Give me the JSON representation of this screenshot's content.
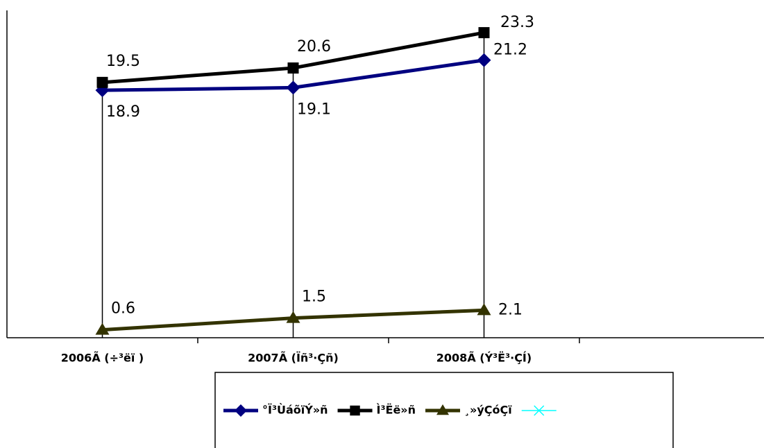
{
  "chart_data": {
    "type": "line",
    "categories": [
      "2006Ã (÷³ëï )",
      "2007Ã (Ïñ³·Çñ)",
      "2008Ã (Ý³Ë³·ÇÍ)",
      null
    ],
    "series": [
      {
        "name": "°Ï³ÙáõïÝ»ñ",
        "color": "#000080",
        "marker": "diamond",
        "values": [
          18.9,
          19.1,
          21.2,
          null
        ]
      },
      {
        "name": "Ì³Ëë»ñ",
        "color": "#000000",
        "marker": "square",
        "values": [
          19.5,
          20.6,
          23.3,
          null
        ]
      },
      {
        "name": "¸»ýÇóÇï",
        "color": "#333300",
        "marker": "triangle",
        "values": [
          0.6,
          1.5,
          2.1,
          null
        ]
      },
      {
        "color": "#00ffff",
        "marker": "x",
        "values": [
          null,
          null,
          null,
          null
        ]
      }
    ],
    "ylim": [
      0,
      25
    ],
    "drop_lines": true,
    "legend": "bottom"
  }
}
